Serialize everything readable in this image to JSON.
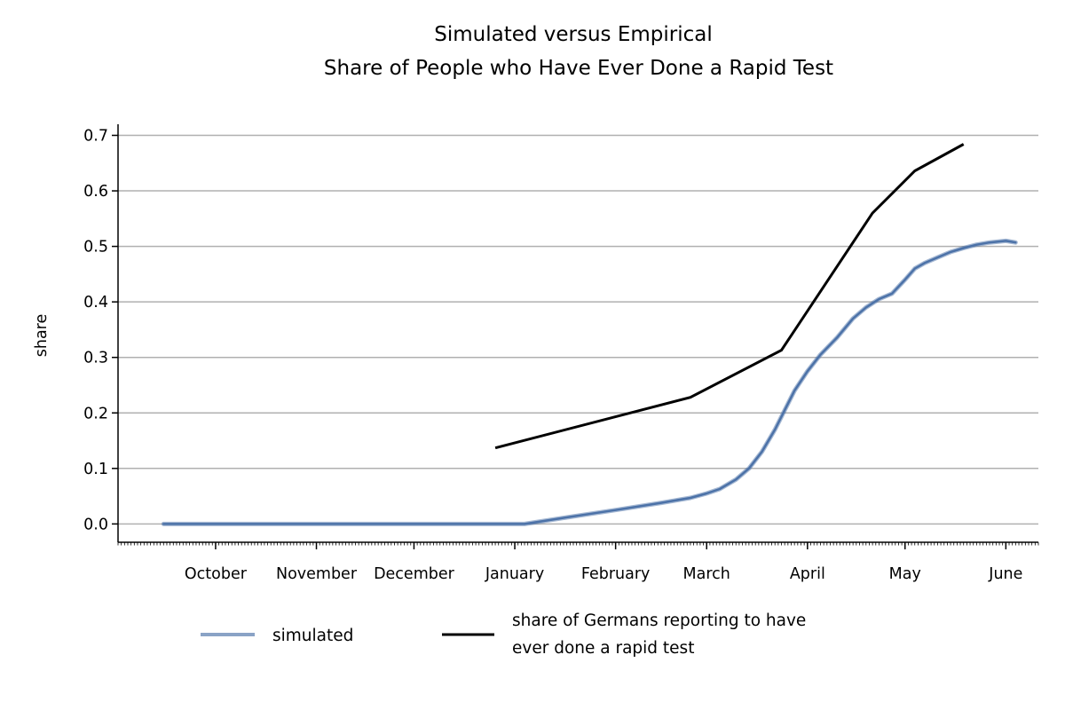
{
  "chart_data": {
    "type": "line",
    "title": [
      "Simulated versus Empirical",
      "Share of People who Have Ever Done a Rapid Test"
    ],
    "ylabel": "share",
    "xlabel": "",
    "ylim": [
      -0.033,
      0.72
    ],
    "xlim": [
      "2020-09-01",
      "2021-06-11"
    ],
    "y_ticks": [
      "0.0",
      "0.1",
      "0.2",
      "0.3",
      "0.4",
      "0.5",
      "0.6",
      "0.7"
    ],
    "x_tick_labels": [
      {
        "date": "2020-10-01",
        "label": "October"
      },
      {
        "date": "2020-11-01",
        "label": "November"
      },
      {
        "date": "2020-12-01",
        "label": "December"
      },
      {
        "date": "2021-01-01",
        "label": "January"
      },
      {
        "date": "2021-02-01",
        "label": "February"
      },
      {
        "date": "2021-03-01",
        "label": "March"
      },
      {
        "date": "2021-04-01",
        "label": "April"
      },
      {
        "date": "2021-05-01",
        "label": "May"
      },
      {
        "date": "2021-06-01",
        "label": "June"
      }
    ],
    "grid": "y",
    "legend_position": "bottom",
    "series": [
      {
        "name": "simulated",
        "color": "#4c72a8",
        "x": [
          "2020-09-15",
          "2020-10-15",
          "2020-11-15",
          "2020-12-15",
          "2021-01-01",
          "2021-01-04",
          "2021-01-15",
          "2021-02-01",
          "2021-02-15",
          "2021-02-24",
          "2021-03-01",
          "2021-03-05",
          "2021-03-10",
          "2021-03-14",
          "2021-03-18",
          "2021-03-22",
          "2021-03-25",
          "2021-03-28",
          "2021-04-01",
          "2021-04-05",
          "2021-04-10",
          "2021-04-15",
          "2021-04-19",
          "2021-04-23",
          "2021-04-27",
          "2021-05-01",
          "2021-05-04",
          "2021-05-07",
          "2021-05-11",
          "2021-05-15",
          "2021-05-19",
          "2021-05-23",
          "2021-05-27",
          "2021-06-01",
          "2021-06-04"
        ],
        "y": [
          0,
          0,
          0,
          0,
          0,
          0,
          0.01,
          0.025,
          0.038,
          0.047,
          0.055,
          0.063,
          0.08,
          0.1,
          0.13,
          0.17,
          0.205,
          0.24,
          0.275,
          0.305,
          0.335,
          0.37,
          0.39,
          0.405,
          0.415,
          0.44,
          0.46,
          0.47,
          0.48,
          0.49,
          0.497,
          0.503,
          0.507,
          0.51,
          0.507
        ]
      },
      {
        "name": "share of Germans reporting to have ever done a rapid test",
        "color": "#000000",
        "x": [
          "2020-12-26",
          "2021-02-24",
          "2021-03-24",
          "2021-04-21",
          "2021-05-04",
          "2021-05-19"
        ],
        "y": [
          0.137,
          0.228,
          0.313,
          0.56,
          0.636,
          0.684
        ]
      }
    ]
  }
}
